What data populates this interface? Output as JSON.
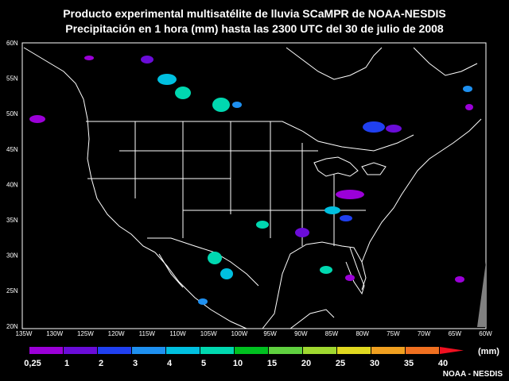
{
  "header": {
    "title_line1": "Producto experimental multisatélite de lluvia SCaMPR de NOAA-NESDIS",
    "title_line2": "Precipitación en 1 hora (mm) hasta las 2300 UTC del 30 de julio de 2008"
  },
  "map": {
    "lat_labels": [
      "60N",
      "55N",
      "50N",
      "45N",
      "40N",
      "35N",
      "30N",
      "25N",
      "20N"
    ],
    "lon_labels": [
      "135W",
      "130W",
      "125W",
      "120W",
      "115W",
      "110W",
      "105W",
      "100W",
      "95W",
      "90W",
      "85W",
      "80W",
      "75W",
      "70W",
      "65W",
      "60W"
    ],
    "background_color": "#000000",
    "boundary_color": "#ffffff"
  },
  "legend": {
    "unit": "(mm)",
    "labels": [
      "0,25",
      "1",
      "2",
      "3",
      "4",
      "5",
      "10",
      "15",
      "20",
      "25",
      "30",
      "35",
      "40"
    ],
    "colors": [
      "#9b00d8",
      "#6a0cd8",
      "#2040f0",
      "#1e90f0",
      "#00c0e0",
      "#00d8b0",
      "#00c020",
      "#60d040",
      "#a0d830",
      "#e0d820",
      "#f0a020",
      "#f07020",
      "#f01020"
    ]
  },
  "credit": "NOAA - NESDIS"
}
